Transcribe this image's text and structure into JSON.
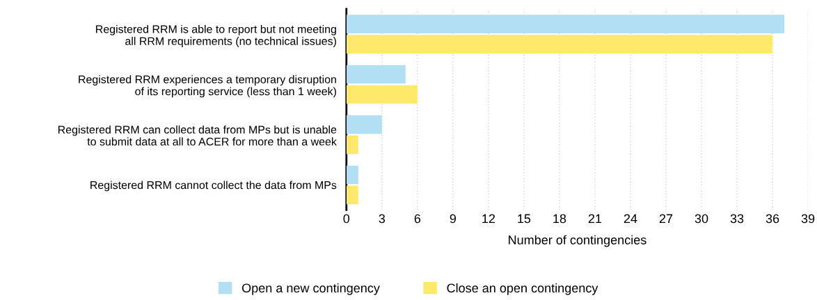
{
  "chart_data": {
    "type": "bar",
    "orientation": "horizontal",
    "xlabel": "Number of contingencies",
    "categories": [
      "Registered RRM is able to report but not meeting\nall RRM requirements (no technical issues)",
      "Registered RRM experiences a temporary disruption\nof its reporting service (less than 1 week)",
      "Registered RRM can collect data from MPs but is unable\nto submit data at all to ACER for more than a week",
      "Registered RRM cannot collect the data from MPs"
    ],
    "series": [
      {
        "name": "Open a new contingency",
        "color": "#b3dff5",
        "values": [
          37,
          5,
          3,
          1
        ]
      },
      {
        "name": "Close an open contingency",
        "color": "#ffe96b",
        "values": [
          36,
          6,
          1,
          1
        ]
      }
    ],
    "xlim": [
      0,
      39
    ],
    "xticks": [
      0,
      3,
      6,
      9,
      12,
      15,
      18,
      21,
      24,
      27,
      30,
      33,
      36,
      39
    ],
    "grid": "x",
    "legend": "bottom"
  }
}
